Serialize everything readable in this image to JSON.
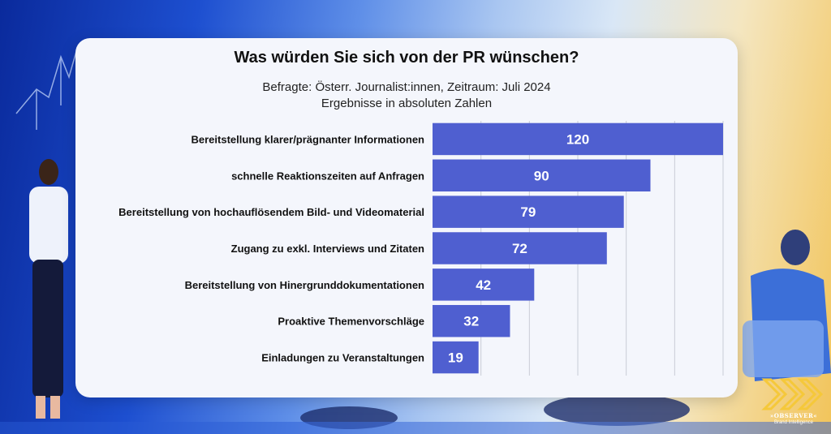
{
  "chart_data": {
    "type": "bar",
    "orientation": "horizontal",
    "title": "Was würden Sie sich von der PR wünschen?",
    "subtitle_lines": [
      "Befragte: Österr. Journalist:innen, Zeitraum: Juli 2024",
      "Ergebnisse in absoluten Zahlen"
    ],
    "categories": [
      "Bereitstellung klarer/prägnanter Informationen",
      "schnelle Reaktionszeiten auf Anfragen",
      "Bereitstellung von hochauflösendem Bild- und Videomaterial",
      "Zugang zu exkl. Interviews und Zitaten",
      "Bereitstellung von Hinergrunddokumentationen",
      "Proaktive Themenvorschläge",
      "Einladungen zu Veranstaltungen"
    ],
    "values": [
      120,
      90,
      79,
      72,
      42,
      32,
      19
    ],
    "data_labels": [
      "120",
      "90",
      "79",
      "72",
      "42",
      "32",
      "19"
    ],
    "xlim": [
      0,
      120
    ],
    "grid": true,
    "bar_color": "#4f5fd0",
    "label_color": "#ffffff"
  },
  "logo": {
    "text": "»OBSERVER«",
    "subtext": "Brand Intelligence",
    "color": "#f5c83a"
  }
}
